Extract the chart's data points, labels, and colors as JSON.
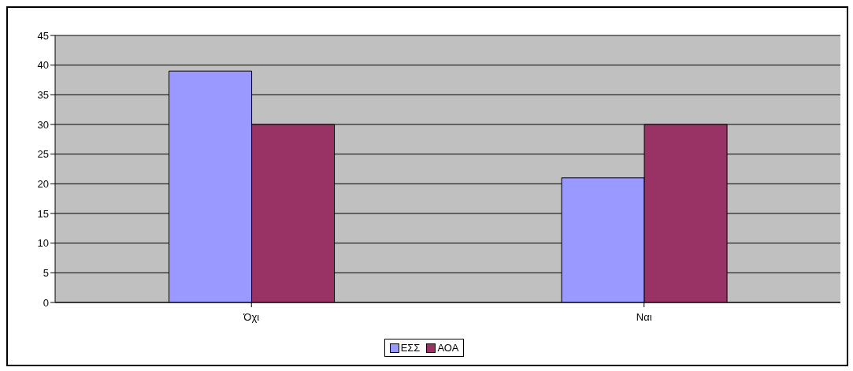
{
  "chart_data": {
    "type": "bar",
    "categories": [
      "Όχι",
      "Ναι"
    ],
    "series": [
      {
        "name": "ΕΣΣ",
        "color": "#9999ff",
        "values": [
          39,
          21
        ]
      },
      {
        "name": "ΑΟΑ",
        "color": "#993366",
        "values": [
          30,
          30
        ]
      }
    ],
    "ylim": [
      0,
      45
    ],
    "yticks": [
      0,
      5,
      10,
      15,
      20,
      25,
      30,
      35,
      40,
      45
    ],
    "grid": "y",
    "legend": "bottom"
  }
}
